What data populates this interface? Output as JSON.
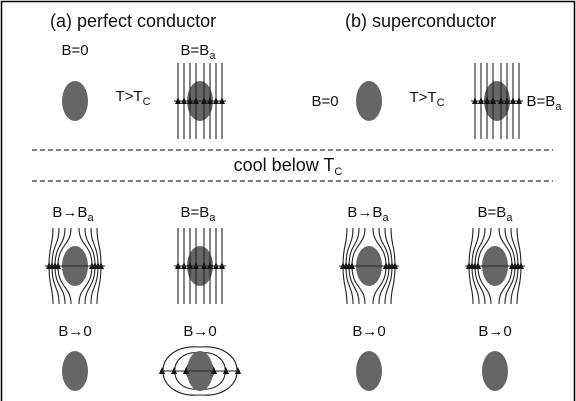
{
  "titles": [
    "(a) perfect conductor",
    "(b) superconductor"
  ],
  "cooling": {
    "text": "cool below T",
    "sub": "C"
  },
  "labels": [
    {
      "text": "B=0"
    },
    {
      "text": "B=B",
      "sub": "a"
    },
    {
      "text": "T>T",
      "sub": "C"
    },
    {
      "text": "B=0"
    },
    {
      "text": "T>T",
      "sub": "C"
    },
    {
      "text": "B=B",
      "sub": "a"
    },
    {
      "text": "B→B",
      "sub": "a"
    },
    {
      "text": "B=B",
      "sub": "a"
    },
    {
      "text": "B→B",
      "sub": "a"
    },
    {
      "text": "B=B",
      "sub": "a"
    },
    {
      "text": "B→0"
    },
    {
      "text": "B→0"
    },
    {
      "text": "B→0"
    },
    {
      "text": "B→0"
    }
  ]
}
